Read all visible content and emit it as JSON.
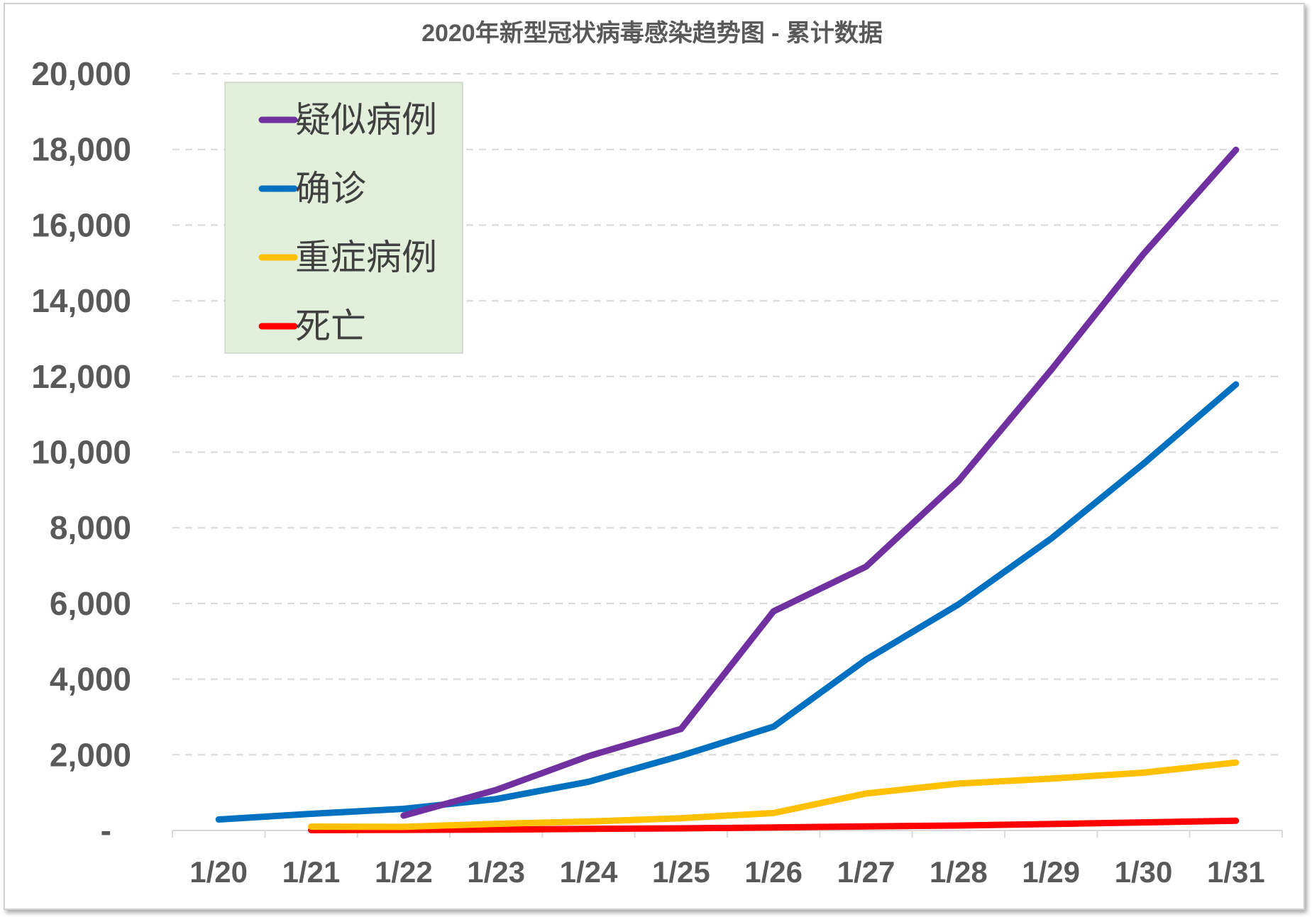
{
  "chart_data": {
    "type": "line",
    "title": "2020年新型冠状病毒感染趋势图 - 累计数据",
    "categories": [
      "1/20",
      "1/21",
      "1/22",
      "1/23",
      "1/24",
      "1/25",
      "1/26",
      "1/27",
      "1/28",
      "1/29",
      "1/30",
      "1/31"
    ],
    "ylim": [
      0,
      20000
    ],
    "yticks": [
      {
        "value": 0,
        "label": "-"
      },
      {
        "value": 2000,
        "label": "2,000"
      },
      {
        "value": 4000,
        "label": "4,000"
      },
      {
        "value": 6000,
        "label": "6,000"
      },
      {
        "value": 8000,
        "label": "8,000"
      },
      {
        "value": 10000,
        "label": "10,000"
      },
      {
        "value": 12000,
        "label": "12,000"
      },
      {
        "value": 14000,
        "label": "14,000"
      },
      {
        "value": 16000,
        "label": "16,000"
      },
      {
        "value": 18000,
        "label": "18,000"
      },
      {
        "value": 20000,
        "label": "20,000"
      }
    ],
    "grid": true,
    "legend_position": "top-left",
    "series": [
      {
        "name": "疑似病例",
        "color": "#7030a0",
        "values": [
          null,
          null,
          393,
          1072,
          1965,
          2684,
          5794,
          6973,
          9239,
          12167,
          15238,
          17988
        ]
      },
      {
        "name": "确诊",
        "color": "#0070c0",
        "values": [
          291,
          440,
          571,
          830,
          1287,
          1975,
          2744,
          4515,
          5974,
          7711,
          9692,
          11791
        ]
      },
      {
        "name": "重症病例",
        "color": "#ffc000",
        "values": [
          null,
          102,
          95,
          177,
          237,
          324,
          461,
          976,
          1239,
          1370,
          1527,
          1795
        ]
      },
      {
        "name": "死亡",
        "color": "#ff0000",
        "values": [
          null,
          9,
          17,
          25,
          41,
          56,
          80,
          106,
          132,
          170,
          213,
          259
        ]
      }
    ]
  }
}
